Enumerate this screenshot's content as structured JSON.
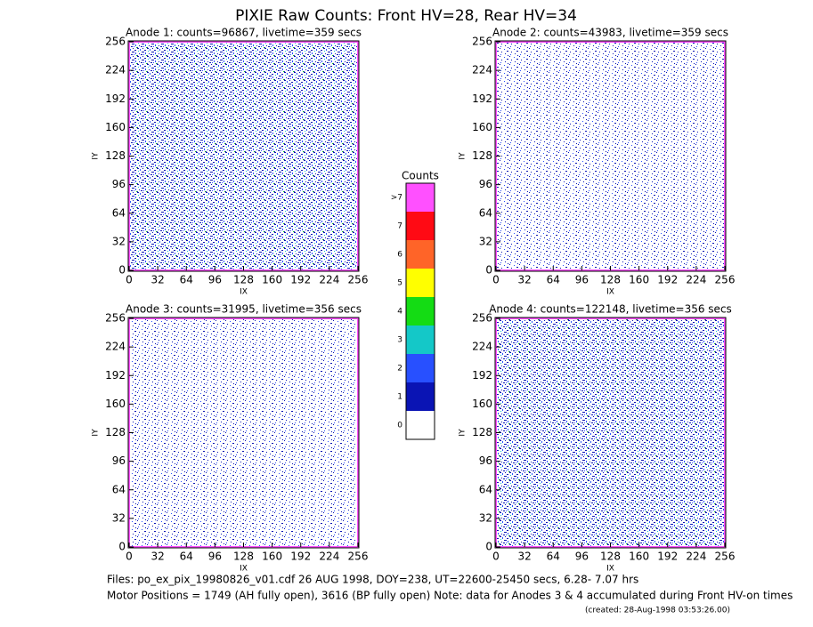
{
  "title": "PIXIE Raw Counts:  Front HV=28, Rear HV=34",
  "chart_data": [
    {
      "type": "heatmap",
      "title": "Anode 1: counts=96867, livetime=359 secs",
      "xlabel": "IX",
      "ylabel": "IY",
      "xlim": [
        0,
        256
      ],
      "ylim": [
        0,
        256
      ],
      "xticks": [
        0,
        32,
        64,
        96,
        128,
        160,
        192,
        224,
        256
      ],
      "yticks": [
        0,
        32,
        64,
        96,
        128,
        160,
        192,
        224,
        256
      ]
    },
    {
      "type": "heatmap",
      "title": "Anode 2: counts=43983, livetime=359 secs",
      "xlabel": "IX",
      "ylabel": "IY",
      "xlim": [
        0,
        256
      ],
      "ylim": [
        0,
        256
      ],
      "xticks": [
        0,
        32,
        64,
        96,
        128,
        160,
        192,
        224,
        256
      ],
      "yticks": [
        0,
        32,
        64,
        96,
        128,
        160,
        192,
        224,
        256
      ]
    },
    {
      "type": "heatmap",
      "title": "Anode 3: counts=31995, livetime=356 secs",
      "xlabel": "IX",
      "ylabel": "IY",
      "xlim": [
        0,
        256
      ],
      "ylim": [
        0,
        256
      ],
      "xticks": [
        0,
        32,
        64,
        96,
        128,
        160,
        192,
        224,
        256
      ],
      "yticks": [
        0,
        32,
        64,
        96,
        128,
        160,
        192,
        224,
        256
      ]
    },
    {
      "type": "heatmap",
      "title": "Anode 4: counts=122148, livetime=356 secs",
      "xlabel": "IX",
      "ylabel": "IY",
      "xlim": [
        0,
        256
      ],
      "ylim": [
        0,
        256
      ],
      "xticks": [
        0,
        32,
        64,
        96,
        128,
        160,
        192,
        224,
        256
      ],
      "yticks": [
        0,
        32,
        64,
        96,
        128,
        160,
        192,
        224,
        256
      ]
    }
  ],
  "colorbar": {
    "title": "Counts",
    "labels": [
      "0",
      "1",
      "2",
      "3",
      "4",
      "5",
      "6",
      "7",
      ">7"
    ],
    "colors": [
      "#ffffff",
      "#0a14b4",
      "#2850ff",
      "#14c8c8",
      "#14dc14",
      "#ffff00",
      "#ff6428",
      "#ff0a14",
      "#ff50ff"
    ]
  },
  "footer": [
    "Files: po_ex_pix_19980826_v01.cdf    26 AUG 1998, DOY=238, UT=22600-25450 secs,  6.28- 7.07 hrs",
    "Motor Positions = 1749 (AH fully open), 3616 (BP fully open)    Note: data for Anodes 3 & 4 accumulated during Front HV-on times",
    "(created: 28-Aug-1998 03:53:26.00)"
  ]
}
